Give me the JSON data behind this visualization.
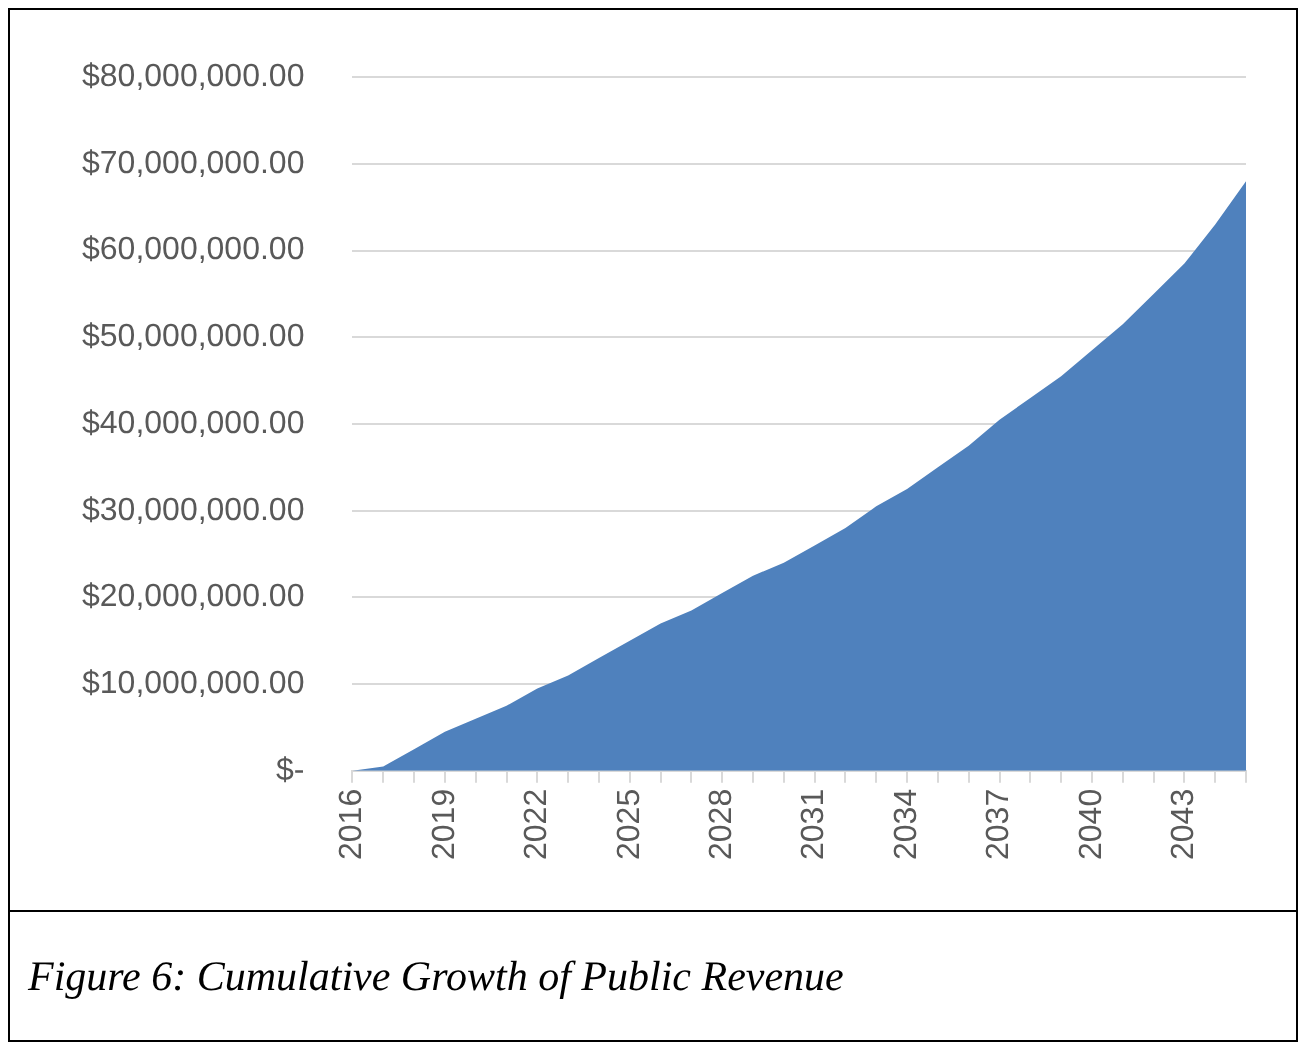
{
  "chart_data": {
    "type": "area",
    "categories": [
      "2016",
      null,
      null,
      "2019",
      null,
      null,
      "2022",
      null,
      null,
      "2025",
      null,
      null,
      "2028",
      null,
      null,
      "2031",
      null,
      null,
      "2034",
      null,
      null,
      "2037",
      null,
      null,
      "2040",
      null,
      null,
      "2043",
      null,
      null
    ],
    "series": [
      {
        "color": "#4f81bd",
        "values": [
          0,
          500000,
          2500000,
          4500000,
          6000000,
          7500000,
          9500000,
          11000000,
          13000000,
          15000000,
          17000000,
          18500000,
          20500000,
          22500000,
          24000000,
          26000000,
          28000000,
          30500000,
          32500000,
          35000000,
          37500000,
          40500000,
          43000000,
          45500000,
          48500000,
          51500000,
          55000000,
          58500000,
          63000000,
          68000000
        ]
      }
    ],
    "ylim": [
      0,
      80000000
    ],
    "yticks": [
      {
        "value": 0,
        "label": "$-"
      },
      {
        "value": 10000000,
        "label": "$10,000,000.00"
      },
      {
        "value": 20000000,
        "label": "$20,000,000.00"
      },
      {
        "value": 30000000,
        "label": "$30,000,000.00"
      },
      {
        "value": 40000000,
        "label": "$40,000,000.00"
      },
      {
        "value": 50000000,
        "label": "$50,000,000.00"
      },
      {
        "value": 60000000,
        "label": "$60,000,000.00"
      },
      {
        "value": 70000000,
        "label": "$70,000,000.00"
      },
      {
        "value": 80000000,
        "label": "$80,000,000.00"
      }
    ],
    "grid": "y",
    "legend": false,
    "annotations": [
      "Figure 6: Cumulative Growth of Public Revenue"
    ]
  }
}
